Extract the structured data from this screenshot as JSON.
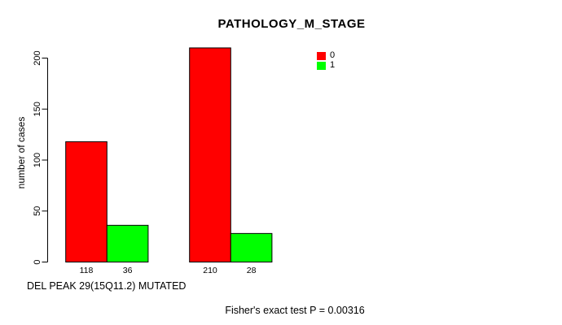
{
  "chart_data": {
    "type": "bar",
    "title": "PATHOLOGY_M_STAGE",
    "ylabel": "number of cases",
    "xlabel": "DEL PEAK 29(15Q11.2) MUTATED",
    "annotation": "Fisher's exact test P = 0.00316",
    "yticks": [
      0,
      50,
      100,
      150,
      200
    ],
    "ylim": [
      0,
      210
    ],
    "grid": false,
    "legend_position": "top-right",
    "axis_color": "#000000",
    "series": [
      {
        "name": "0",
        "color": "#FF0000"
      },
      {
        "name": "1",
        "color": "#00FF00"
      }
    ],
    "groups": [
      {
        "bars": [
          {
            "series": "0",
            "value": 118
          },
          {
            "series": "1",
            "value": 36
          }
        ]
      },
      {
        "bars": [
          {
            "series": "0",
            "value": 210
          },
          {
            "series": "1",
            "value": 28
          }
        ]
      }
    ]
  }
}
